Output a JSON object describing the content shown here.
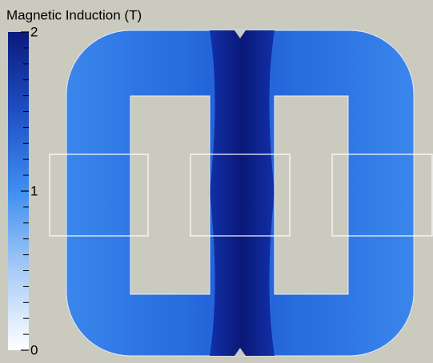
{
  "legend": {
    "title": "Magnetic Induction (T)",
    "range": [
      0,
      2
    ],
    "ticks": [
      0,
      1,
      2
    ]
  }
}
